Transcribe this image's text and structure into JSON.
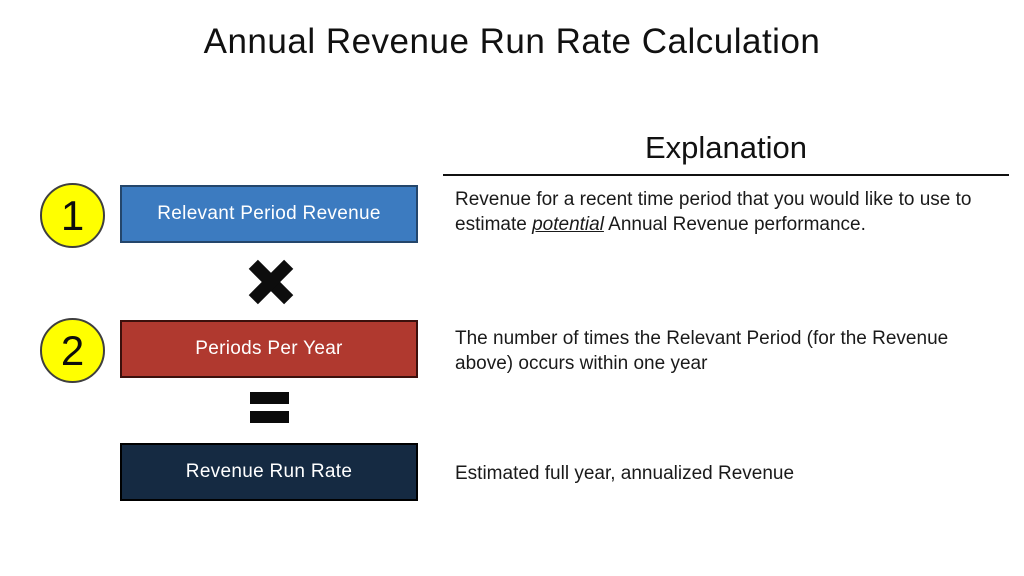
{
  "title": "Annual Revenue Run Rate Calculation",
  "explanation_column": {
    "header": "Explanation"
  },
  "rows": [
    {
      "number": "1",
      "box_label": "Relevant Period Revenue",
      "explanation": {
        "pre": "Revenue for a recent time period that you would like to use to estimate ",
        "emphasis": "potential",
        "post": " Annual Revenue performance."
      }
    },
    {
      "number": "2",
      "box_label": "Periods Per Year",
      "explanation": {
        "text": "The number of times the Relevant Period (for the Revenue above) occurs within one year"
      }
    },
    {
      "box_label": "Revenue Run Rate",
      "explanation": {
        "text": "Estimated full year, annualized Revenue"
      }
    }
  ],
  "operators": [
    {
      "name": "multiply",
      "symbol": "✖"
    },
    {
      "name": "equals",
      "symbol": "="
    }
  ],
  "colors": {
    "background": "#ffffff",
    "title_text": "#111111",
    "body_text": "#1a1a1a",
    "box1_fill": "#3c7bc0",
    "box1_border": "#24466b",
    "box2_fill": "#b0392f",
    "box2_border": "#3b100c",
    "box3_fill": "#152a42",
    "box3_border": "#000000",
    "badge_fill": "#ffff00",
    "badge_border": "#3f3f3f",
    "operator_color": "#0d0d0d"
  }
}
